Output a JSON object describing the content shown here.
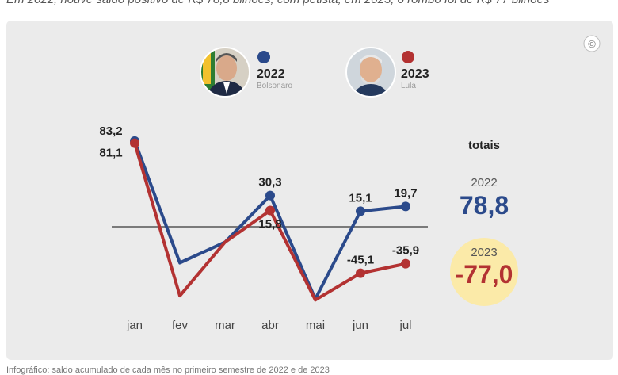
{
  "subtitle": "Em 2022, houve saldo positivo de R$ 78,8 bilhões; com petista, em 2023, o rombo foi de R$ 77 bilhões",
  "footer": "Infográfico: saldo acumulado de cada mês no primeiro semestre de 2022 e de 2023",
  "copyright_symbol": "©",
  "legend": [
    {
      "year": "2022",
      "name": "Bolsonaro",
      "color": "#2b4a8b"
    },
    {
      "year": "2023",
      "name": "Lula",
      "color": "#b33232"
    }
  ],
  "totals": {
    "heading": "totais",
    "items": [
      {
        "year": "2022",
        "value": "78,8",
        "color": "#2b4a8b",
        "highlight": false
      },
      {
        "year": "2023",
        "value": "-77,0",
        "color": "#b33232",
        "highlight": true
      }
    ],
    "highlight_color": "#fbeaa8"
  },
  "chart_data": {
    "type": "line",
    "categories": [
      "jan",
      "fev",
      "mar",
      "abr",
      "mai",
      "jun",
      "jul"
    ],
    "series": [
      {
        "name": "2022",
        "color": "#2b4a8b",
        "values": [
          83.2,
          -35,
          -15,
          30.3,
          -70,
          15.1,
          19.7
        ],
        "labels": [
          "83,2",
          null,
          null,
          "30,3",
          null,
          "15,1",
          "19,7"
        ]
      },
      {
        "name": "2023",
        "color": "#b33232",
        "values": [
          81.1,
          -67,
          -15,
          15.8,
          -71,
          -45.1,
          -35.9
        ],
        "labels": [
          "81,1",
          null,
          null,
          "15,8",
          null,
          "-45,1",
          "-35,9"
        ]
      }
    ],
    "ylim": [
      -85,
      90
    ],
    "zero_line": true,
    "grid": false
  }
}
